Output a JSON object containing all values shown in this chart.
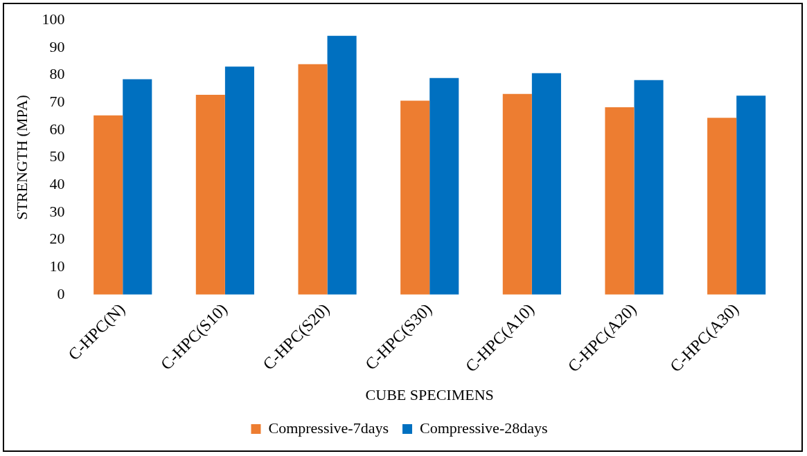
{
  "chart_data": {
    "type": "bar",
    "xlabel": "CUBE SPECIMENS",
    "ylabel": "STRENGTH (MPA)",
    "categories": [
      "C-HPC(N)",
      "C-HPC(S10)",
      "C-HPC(S20)",
      "C-HPC(S30)",
      "C-HPC(A10)",
      "C-HPC(A20)",
      "C-HPC(A30)"
    ],
    "series": [
      {
        "name": "Compressive-7days",
        "color": "#ed7d31",
        "values": [
          65.3,
          72.8,
          84,
          70.7,
          73.1,
          68.3,
          64.4
        ]
      },
      {
        "name": "Compressive-28days",
        "color": "#0070c0",
        "values": [
          78.5,
          83.1,
          94.3,
          78.9,
          80.7,
          78.2,
          72.5
        ]
      }
    ],
    "ylim": [
      0,
      100
    ],
    "yticks": [
      0,
      10,
      20,
      30,
      40,
      50,
      60,
      70,
      80,
      90,
      100
    ],
    "grid": false,
    "legend": "bottom"
  }
}
